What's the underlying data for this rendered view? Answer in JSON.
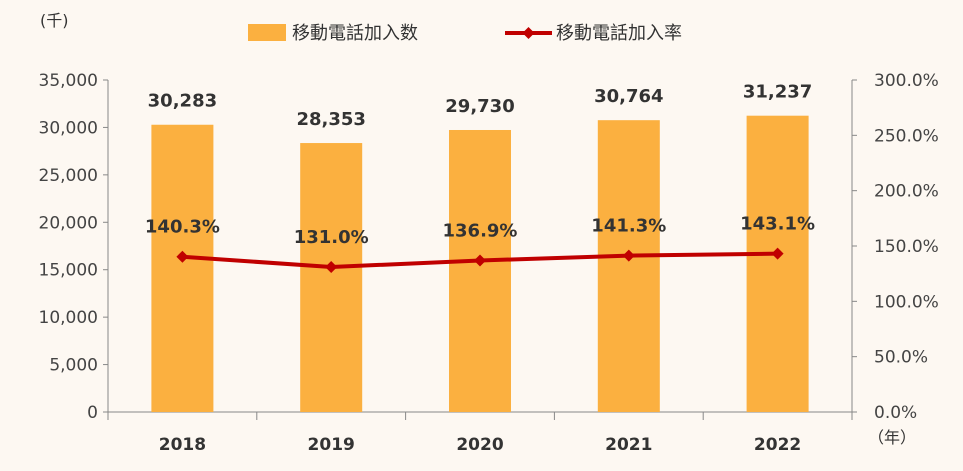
{
  "chart_data": {
    "type": "bar",
    "categories": [
      "2018",
      "2019",
      "2020",
      "2021",
      "2022"
    ],
    "series": [
      {
        "name": "移動電話加入数",
        "type": "bar",
        "axis": "left",
        "values": [
          30283,
          28353,
          29730,
          30764,
          31237
        ],
        "labels": [
          "30,283",
          "28,353",
          "29,730",
          "30,764",
          "31,237"
        ],
        "color": "#fbb040"
      },
      {
        "name": "移動電話加入率",
        "type": "line",
        "axis": "right",
        "values": [
          140.3,
          131.0,
          136.9,
          141.3,
          143.1
        ],
        "labels": [
          "140.3%",
          "131.0%",
          "136.9%",
          "141.3%",
          "143.1%"
        ],
        "color": "#c00000"
      }
    ],
    "left_unit": "(千)",
    "x_unit": "（年）",
    "ylim_left": [
      0,
      35000
    ],
    "yticks_left": [
      "0",
      "5,000",
      "10,000",
      "15,000",
      "20,000",
      "25,000",
      "30,000",
      "35,000"
    ],
    "ylim_right": [
      0,
      300
    ],
    "yticks_right": [
      "0.0%",
      "50.0%",
      "100.0%",
      "150.0%",
      "200.0%",
      "250.0%",
      "300.0%"
    ],
    "grid": false,
    "legend_position": "top"
  }
}
